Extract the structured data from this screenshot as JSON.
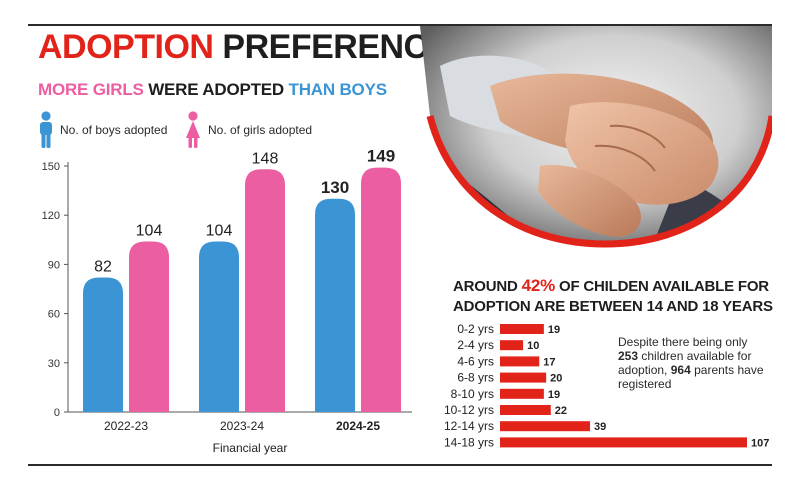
{
  "header": {
    "title_part1": "ADOPTION",
    "title_part2": "PREFERENCES"
  },
  "left_panel": {
    "subtitle_part1": "MORE GIRLS",
    "subtitle_part2": "WERE ADOPTED",
    "subtitle_part3": "THAN BOYS",
    "legend_boys": "No. of boys adopted",
    "legend_girls": "No. of girls adopted"
  },
  "right_panel": {
    "heading_part1": "AROUND",
    "heading_pct": "42%",
    "heading_part2": "OF CHILDEN AVAILABLE FOR ADOPTION ARE BETWEEN 14 AND 18 YEARS",
    "note_part1": "Despite there being only",
    "note_children": "253",
    "note_part2": "children available for adoption,",
    "note_parents": "964",
    "note_part3": "parents have registered"
  },
  "colors": {
    "boys": "#3b95d4",
    "girls": "#ec5ea2",
    "accent_red": "#e2231a",
    "text_dark": "#1e1e1e"
  },
  "icons": {
    "boy": "boy-figure-icon",
    "girl": "girl-figure-icon"
  },
  "chart_data": [
    {
      "type": "bar",
      "categories": [
        "2022-23",
        "2023-24",
        "2024-25"
      ],
      "series": [
        {
          "name": "No. of boys adopted",
          "values": [
            82,
            104,
            130
          ]
        },
        {
          "name": "No. of girls adopted",
          "values": [
            104,
            148,
            149
          ]
        }
      ],
      "bold_labels_category": "2024-25",
      "xlabel": "Financial year",
      "ylabel": "",
      "yticks": [
        0,
        30,
        60,
        90,
        120,
        150
      ],
      "ylim": [
        0,
        150
      ],
      "grid": false,
      "legend": "top-left"
    },
    {
      "type": "bar",
      "orientation": "horizontal",
      "categories": [
        "0-2 yrs",
        "2-4 yrs",
        "4-6 yrs",
        "6-8 yrs",
        "8-10 yrs",
        "10-12 yrs",
        "12-14 yrs",
        "14-18 yrs"
      ],
      "values": [
        19,
        10,
        17,
        20,
        19,
        22,
        39,
        107
      ],
      "color": "#e2231a",
      "xlim": [
        0,
        107
      ],
      "grid": false
    }
  ]
}
